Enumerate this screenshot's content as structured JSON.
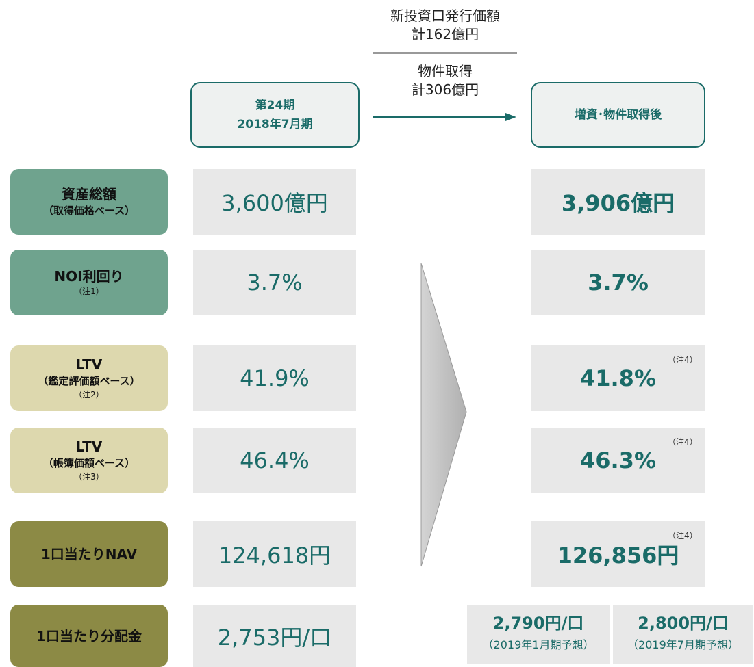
{
  "header": {
    "issuance": [
      "新投資口発行価額",
      "計162億円"
    ],
    "acquisition": [
      "物件取得",
      "計306億円"
    ]
  },
  "columns": {
    "before": [
      "第24期",
      "2018年7月期"
    ],
    "after": "増資･物件取得後"
  },
  "rows": [
    {
      "label": [
        "資産総額",
        "（取得価格ベース）"
      ],
      "before": "3,600億円",
      "after": "3,906億円"
    },
    {
      "label": [
        "NOI利回り"
      ],
      "note": "（注1）",
      "before": "3.7%",
      "after": "3.7%"
    },
    {
      "label": [
        "LTV",
        "（鑑定評価額ベース）"
      ],
      "note": "（注2）",
      "before": "41.9%",
      "after": "41.8%",
      "after_note": "（注4）"
    },
    {
      "label": [
        "LTV",
        "（帳簿価額ベース）"
      ],
      "note": "（注3）",
      "before": "46.4%",
      "after": "46.3%",
      "after_note": "（注4）"
    },
    {
      "label": [
        "1口当たりNAV"
      ],
      "before": "124,618円",
      "after": "126,856円",
      "after_note": "（注4）"
    },
    {
      "label": [
        "1口当たり分配金"
      ],
      "before": "2,753円/口",
      "after_split": [
        [
          "2,790円/口",
          "（2019年1月期予想）"
        ],
        [
          "2,800円/口",
          "（2019年7月期予想）"
        ]
      ]
    }
  ]
}
